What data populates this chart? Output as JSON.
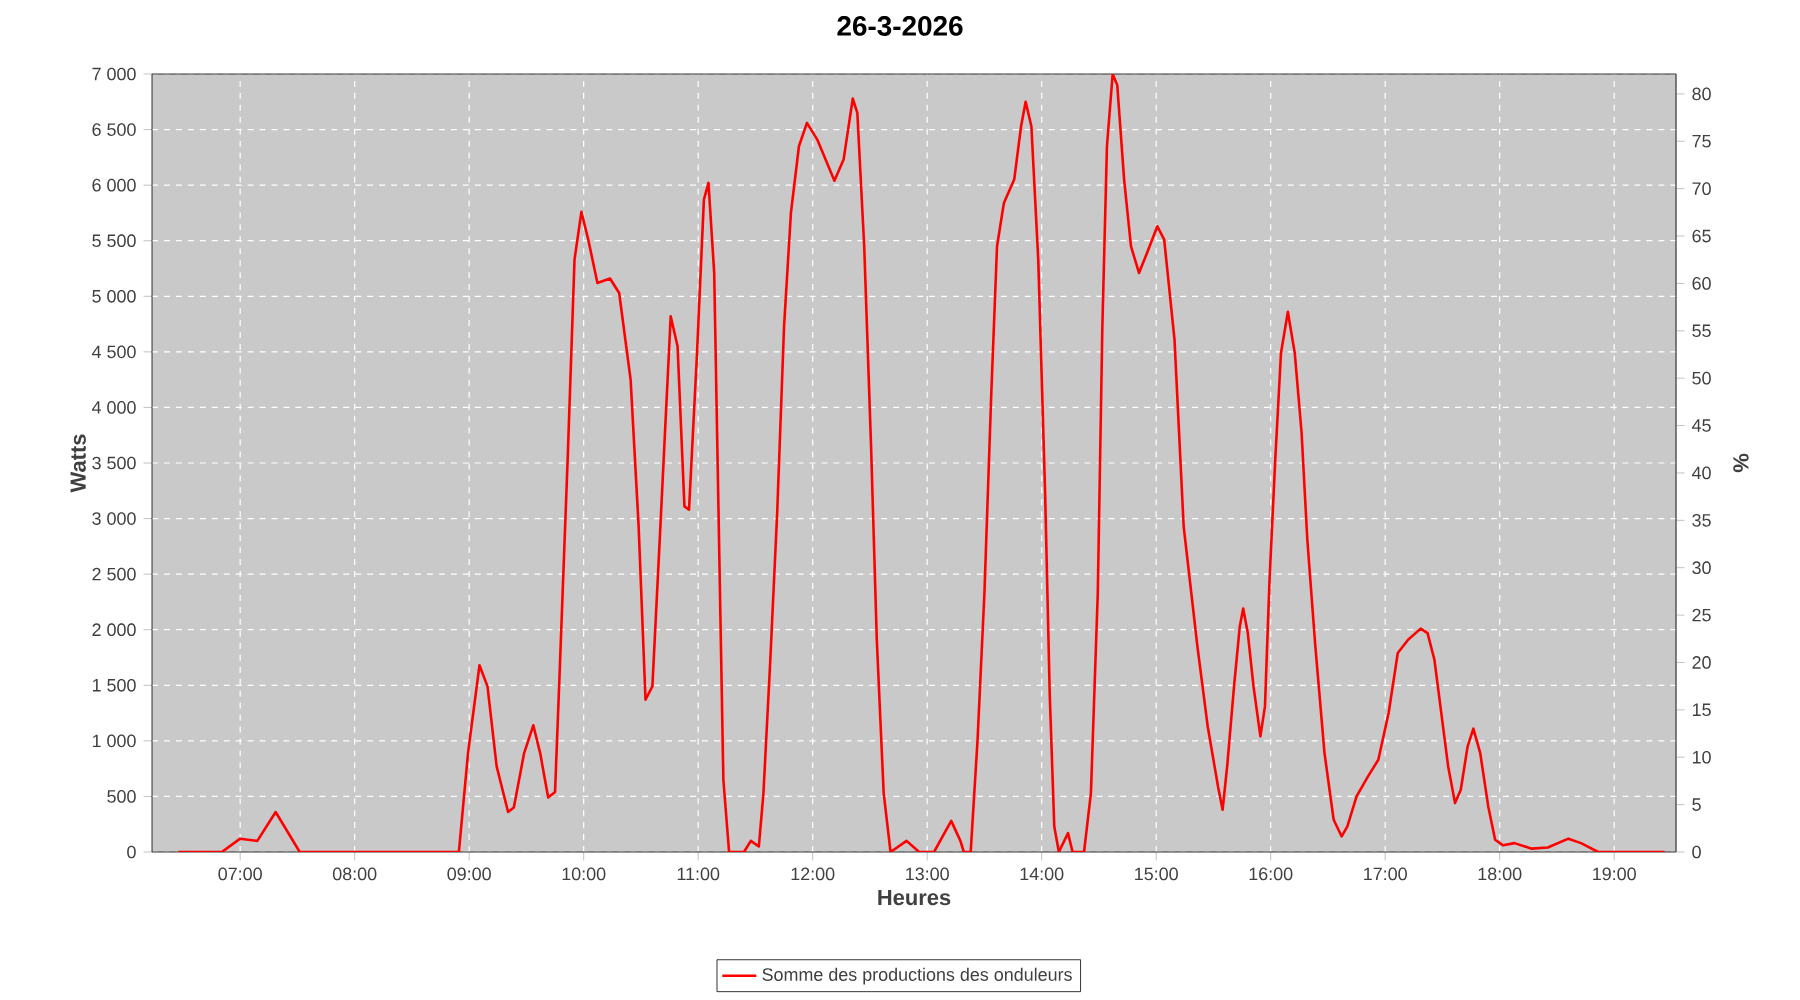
{
  "chart_data": {
    "type": "line",
    "title": "26-3-2026",
    "xlabel": "Heures",
    "ylabel": "Watts",
    "y2label": "%",
    "x": [
      6.46,
      6.84,
      7.0,
      7.15,
      7.31,
      7.52,
      8.91,
      8.99,
      9.09,
      9.16,
      9.24,
      9.34,
      9.39,
      9.48,
      9.56,
      9.62,
      9.69,
      9.75,
      9.79,
      9.86,
      9.92,
      9.98,
      10.04,
      10.12,
      10.23,
      10.31,
      10.41,
      10.48,
      10.54,
      10.6,
      10.67,
      10.76,
      10.82,
      10.88,
      10.92,
      10.99,
      11.05,
      11.09,
      11.14,
      11.18,
      11.22,
      11.27,
      11.4,
      11.46,
      11.53,
      11.57,
      11.63,
      11.69,
      11.75,
      11.81,
      11.88,
      11.95,
      12.04,
      12.19,
      12.27,
      12.35,
      12.39,
      12.45,
      12.51,
      12.56,
      12.62,
      12.68,
      12.82,
      12.93,
      13.06,
      13.21,
      13.29,
      13.32,
      13.38,
      13.44,
      13.5,
      13.56,
      13.61,
      13.67,
      13.76,
      13.82,
      13.86,
      13.91,
      13.97,
      14.03,
      14.07,
      14.11,
      14.15,
      14.23,
      14.27,
      14.37,
      14.43,
      14.49,
      14.53,
      14.57,
      14.62,
      14.66,
      14.72,
      14.78,
      14.85,
      14.92,
      15.01,
      15.07,
      15.16,
      15.24,
      15.36,
      15.45,
      15.54,
      15.58,
      15.62,
      15.68,
      15.73,
      15.76,
      15.8,
      15.85,
      15.91,
      15.95,
      15.99,
      16.04,
      16.09,
      16.15,
      16.21,
      16.27,
      16.32,
      16.39,
      16.47,
      16.55,
      16.62,
      16.67,
      16.75,
      16.85,
      16.94,
      17.03,
      17.11,
      17.2,
      17.31,
      17.37,
      17.43,
      17.49,
      17.55,
      17.61,
      17.66,
      17.72,
      17.77,
      17.83,
      17.9,
      17.96,
      18.03,
      18.13,
      18.28,
      18.42,
      18.6,
      18.71,
      18.86,
      19.44
    ],
    "series": [
      {
        "name": "Somme des productions des onduleurs",
        "color": "#ff0000",
        "values": [
          0,
          0,
          120,
          100,
          360,
          0,
          0,
          890,
          1680,
          1490,
          770,
          360,
          400,
          890,
          1140,
          890,
          490,
          540,
          1610,
          3530,
          5330,
          5760,
          5510,
          5120,
          5160,
          5030,
          4250,
          2930,
          1370,
          1490,
          2930,
          4820,
          4550,
          3110,
          3080,
          4490,
          5870,
          6020,
          5210,
          2930,
          650,
          0,
          0,
          100,
          50,
          530,
          1730,
          3050,
          4730,
          5750,
          6350,
          6560,
          6410,
          6040,
          6230,
          6780,
          6650,
          5450,
          3650,
          1910,
          530,
          0,
          100,
          0,
          0,
          280,
          100,
          0,
          0,
          1010,
          2330,
          4130,
          5450,
          5840,
          6050,
          6530,
          6750,
          6530,
          5330,
          3230,
          1430,
          230,
          0,
          170,
          0,
          0,
          530,
          2330,
          4730,
          6350,
          7000,
          6900,
          6050,
          5450,
          5210,
          5390,
          5630,
          5510,
          4610,
          2930,
          1850,
          1130,
          590,
          380,
          770,
          1490,
          2030,
          2190,
          1970,
          1490,
          1040,
          1310,
          2450,
          3530,
          4490,
          4860,
          4490,
          3770,
          2810,
          1850,
          890,
          290,
          140,
          230,
          500,
          680,
          830,
          1250,
          1790,
          1910,
          2010,
          1970,
          1730,
          1250,
          770,
          440,
          560,
          950,
          1110,
          890,
          410,
          110,
          60,
          80,
          30,
          40,
          120,
          80,
          0,
          0
        ]
      }
    ],
    "xlim": [
      6.23,
      19.54
    ],
    "xticks": [
      {
        "value": 7,
        "label": "07:00"
      },
      {
        "value": 8,
        "label": "08:00"
      },
      {
        "value": 9,
        "label": "09:00"
      },
      {
        "value": 10,
        "label": "10:00"
      },
      {
        "value": 11,
        "label": "11:00"
      },
      {
        "value": 12,
        "label": "12:00"
      },
      {
        "value": 13,
        "label": "13:00"
      },
      {
        "value": 14,
        "label": "14:00"
      },
      {
        "value": 15,
        "label": "15:00"
      },
      {
        "value": 16,
        "label": "16:00"
      },
      {
        "value": 17,
        "label": "17:00"
      },
      {
        "value": 18,
        "label": "18:00"
      },
      {
        "value": 19,
        "label": "19:00"
      }
    ],
    "ylim": [
      0,
      7000
    ],
    "yticks": [
      0,
      {
        "value": 500,
        "label": "500"
      },
      {
        "value": 1000,
        "label": "1 000"
      },
      {
        "value": 1500,
        "label": "1 500"
      },
      {
        "value": 2000,
        "label": "2 000"
      },
      {
        "value": 2500,
        "label": "2 500"
      },
      {
        "value": 3000,
        "label": "3 000"
      },
      {
        "value": 3500,
        "label": "3 500"
      },
      {
        "value": 4000,
        "label": "4 000"
      },
      {
        "value": 4500,
        "label": "4 500"
      },
      {
        "value": 5000,
        "label": "5 000"
      },
      {
        "value": 5500,
        "label": "5 500"
      },
      {
        "value": 6000,
        "label": "6 000"
      },
      {
        "value": 6500,
        "label": "6 500"
      },
      {
        "value": 7000,
        "label": "7 000"
      }
    ],
    "y2lim": [
      0,
      82.1
    ],
    "y2ticks": [
      0,
      5,
      10,
      15,
      20,
      25,
      30,
      35,
      40,
      45,
      50,
      55,
      60,
      65,
      70,
      75,
      80
    ],
    "grid": true,
    "legend": "bottom",
    "marker": "none",
    "line_style": "solid"
  }
}
